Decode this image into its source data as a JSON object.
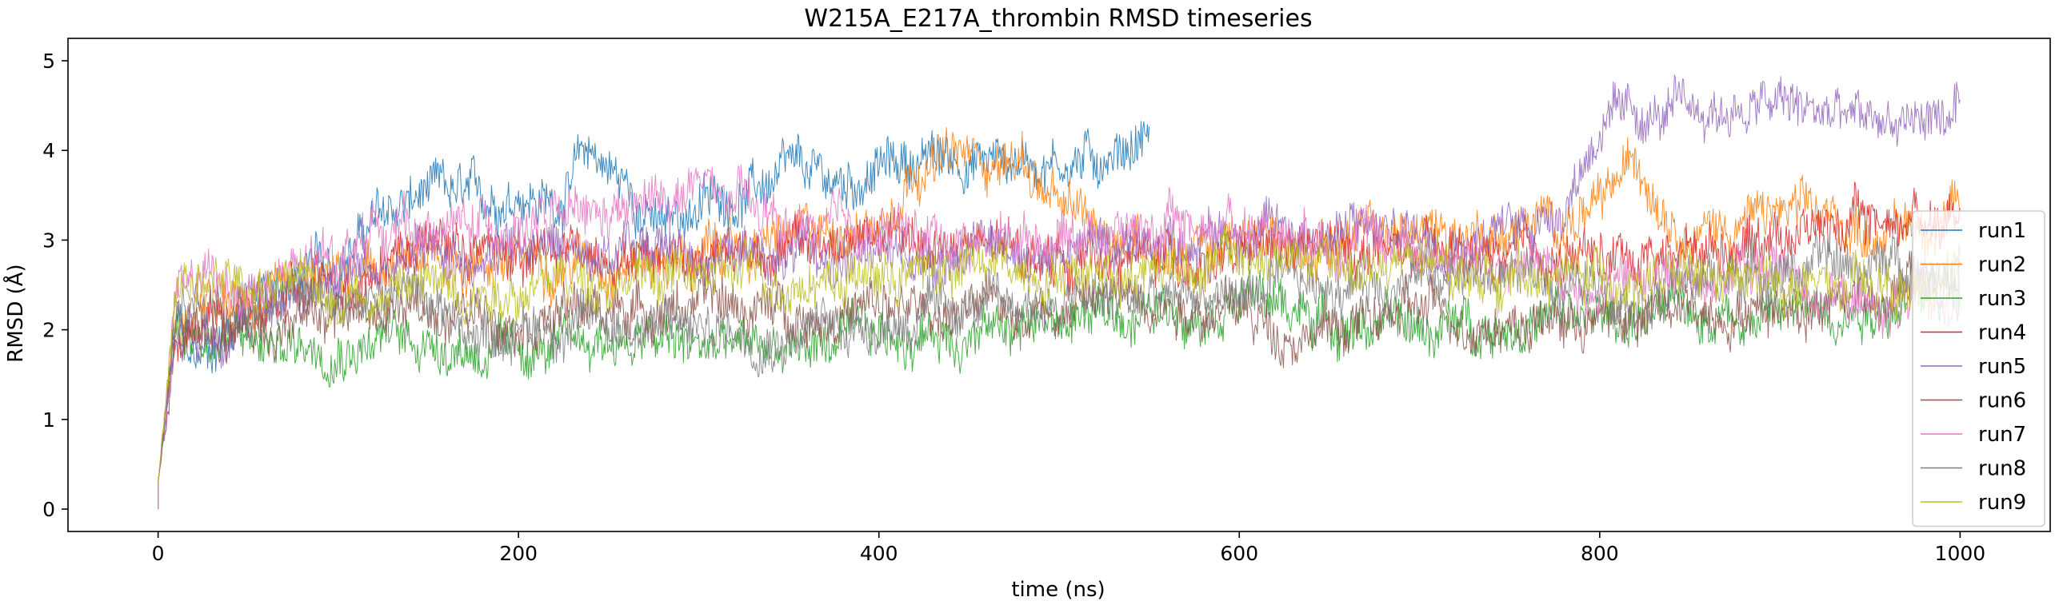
{
  "chart_data": {
    "type": "line",
    "title": "W215A_E217A_thrombin RMSD timeseries",
    "xlabel": "time (ns)",
    "ylabel": "RMSD (Å)",
    "xlim": [
      -50,
      1050
    ],
    "ylim": [
      -0.25,
      5.25
    ],
    "xticks": [
      0,
      200,
      400,
      600,
      800,
      1000
    ],
    "yticks": [
      0,
      1,
      2,
      3,
      4,
      5
    ],
    "grid": false,
    "legend_position": "right",
    "series": [
      {
        "name": "run1",
        "color": "#1f77b4",
        "end_x": 550,
        "x": [
          0,
          10,
          20,
          30,
          50,
          80,
          100,
          120,
          150,
          180,
          200,
          220,
          240,
          260,
          280,
          300,
          320,
          350,
          380,
          400,
          420,
          450,
          480,
          500,
          520,
          550
        ],
        "y": [
          0.3,
          2.1,
          1.6,
          1.8,
          2.3,
          2.6,
          2.8,
          3.2,
          3.5,
          3.4,
          3.6,
          3.4,
          4.0,
          3.6,
          3.1,
          3.4,
          3.5,
          3.7,
          3.6,
          3.8,
          3.9,
          3.9,
          3.9,
          3.9,
          3.9,
          4.2
        ]
      },
      {
        "name": "run2",
        "color": "#ff7f0e",
        "end_x": 1000,
        "x": [
          0,
          10,
          30,
          60,
          100,
          150,
          200,
          250,
          300,
          350,
          400,
          420,
          450,
          480,
          500,
          550,
          600,
          650,
          700,
          750,
          800,
          820,
          850,
          900,
          950,
          1000
        ],
        "y": [
          0.3,
          2.0,
          2.2,
          2.2,
          2.5,
          2.7,
          2.8,
          2.8,
          2.8,
          3.0,
          3.2,
          3.9,
          3.9,
          3.9,
          3.3,
          3.0,
          2.9,
          3.0,
          3.1,
          3.1,
          3.3,
          3.9,
          3.1,
          3.3,
          3.1,
          3.3
        ]
      },
      {
        "name": "run3",
        "color": "#2ca02c",
        "end_x": 1000,
        "x": [
          0,
          10,
          30,
          60,
          100,
          150,
          200,
          250,
          300,
          350,
          400,
          450,
          500,
          550,
          600,
          650,
          700,
          750,
          800,
          850,
          900,
          950,
          1000
        ],
        "y": [
          0.3,
          2.1,
          1.9,
          1.8,
          1.9,
          1.9,
          1.7,
          1.9,
          1.8,
          1.8,
          1.9,
          2.0,
          2.1,
          2.2,
          2.4,
          2.1,
          2.0,
          2.1,
          2.1,
          2.2,
          2.2,
          2.3,
          2.4
        ]
      },
      {
        "name": "run4",
        "color": "#d62728",
        "end_x": 1000,
        "x": [
          0,
          10,
          30,
          60,
          100,
          130,
          150,
          200,
          250,
          300,
          350,
          400,
          450,
          500,
          550,
          600,
          650,
          700,
          750,
          800,
          850,
          900,
          950,
          1000
        ],
        "y": [
          0.3,
          2.0,
          2.1,
          2.2,
          2.5,
          2.9,
          3.0,
          2.8,
          2.9,
          2.9,
          2.9,
          3.0,
          2.9,
          2.8,
          2.8,
          2.8,
          2.9,
          2.8,
          2.8,
          2.8,
          2.9,
          3.1,
          3.2,
          3.3
        ]
      },
      {
        "name": "run5",
        "color": "#9467bd",
        "end_x": 1000,
        "x": [
          0,
          10,
          30,
          60,
          100,
          150,
          200,
          250,
          300,
          350,
          400,
          450,
          500,
          550,
          600,
          650,
          700,
          750,
          780,
          800,
          850,
          900,
          950,
          1000
        ],
        "y": [
          0.3,
          2.0,
          2.1,
          2.3,
          2.6,
          2.8,
          2.9,
          2.9,
          2.9,
          2.8,
          2.8,
          2.9,
          2.9,
          3.0,
          3.1,
          3.1,
          3.1,
          3.1,
          3.4,
          4.3,
          4.4,
          4.5,
          4.3,
          4.4
        ]
      },
      {
        "name": "run6",
        "color": "#8c564b",
        "end_x": 1000,
        "x": [
          0,
          10,
          30,
          60,
          100,
          150,
          200,
          250,
          300,
          350,
          400,
          450,
          500,
          550,
          600,
          620,
          650,
          700,
          750,
          800,
          850,
          900,
          950,
          1000
        ],
        "y": [
          0.3,
          1.9,
          2.0,
          2.1,
          2.2,
          2.2,
          2.2,
          2.2,
          2.3,
          2.2,
          2.2,
          2.2,
          2.3,
          2.4,
          2.2,
          2.0,
          2.0,
          2.2,
          2.1,
          2.1,
          2.2,
          2.3,
          2.4,
          2.6
        ]
      },
      {
        "name": "run7",
        "color": "#e377c2",
        "end_x": 1000,
        "x": [
          0,
          10,
          20,
          40,
          60,
          100,
          120,
          150,
          200,
          250,
          300,
          330,
          350,
          400,
          450,
          500,
          550,
          600,
          650,
          700,
          750,
          800,
          850,
          900,
          950,
          1000
        ],
        "y": [
          0.3,
          2.4,
          2.6,
          2.4,
          2.5,
          2.8,
          3.2,
          3.1,
          3.2,
          3.2,
          3.6,
          3.3,
          3.1,
          3.1,
          3.0,
          3.1,
          3.1,
          3.2,
          3.1,
          2.9,
          2.7,
          2.5,
          2.6,
          2.7,
          2.2,
          2.4
        ]
      },
      {
        "name": "run8",
        "color": "#7f7f7f",
        "end_x": 1000,
        "x": [
          0,
          10,
          30,
          60,
          100,
          150,
          170,
          200,
          250,
          300,
          350,
          400,
          450,
          500,
          550,
          600,
          650,
          700,
          750,
          800,
          850,
          900,
          950,
          1000
        ],
        "y": [
          0.3,
          2.1,
          2.2,
          2.3,
          2.4,
          2.4,
          2.0,
          2.0,
          2.1,
          2.0,
          2.0,
          2.1,
          2.2,
          2.3,
          2.3,
          2.4,
          2.5,
          2.6,
          2.6,
          2.5,
          2.5,
          2.7,
          2.7,
          2.8
        ]
      },
      {
        "name": "run9",
        "color": "#bcbd22",
        "end_x": 1000,
        "x": [
          0,
          10,
          30,
          60,
          100,
          150,
          200,
          250,
          300,
          350,
          400,
          450,
          500,
          550,
          600,
          650,
          700,
          750,
          800,
          850,
          900,
          950,
          1000
        ],
        "y": [
          0.3,
          2.3,
          2.5,
          2.5,
          2.4,
          2.5,
          2.5,
          2.6,
          2.6,
          2.6,
          2.6,
          2.7,
          2.7,
          2.7,
          2.8,
          2.7,
          2.7,
          2.6,
          2.6,
          2.5,
          2.5,
          2.4,
          2.4
        ]
      }
    ]
  }
}
